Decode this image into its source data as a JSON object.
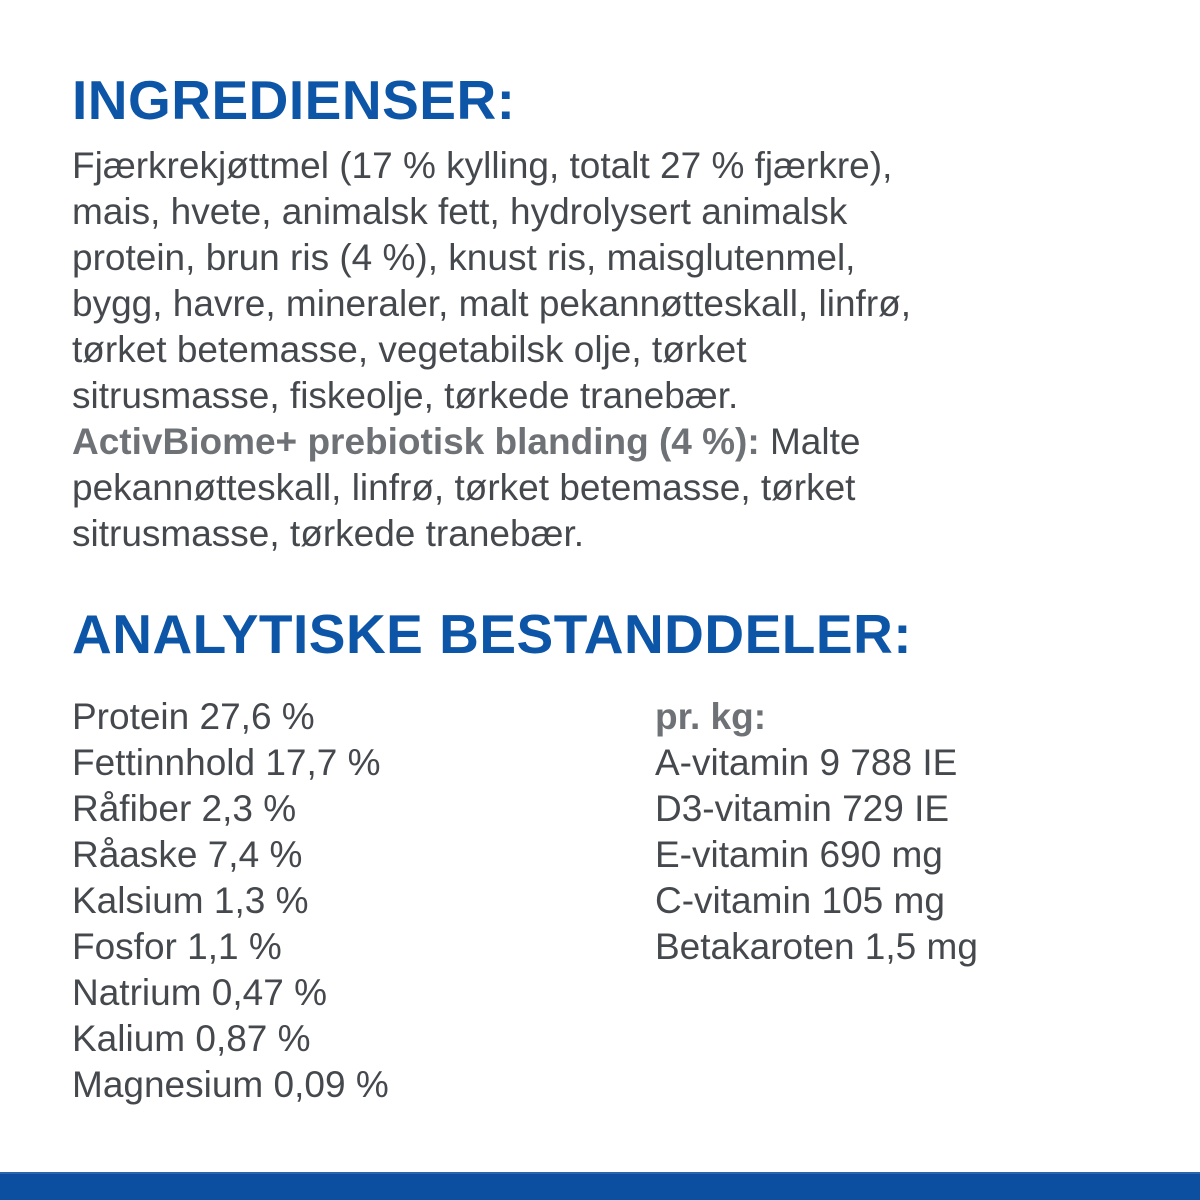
{
  "page": {
    "colors": {
      "heading_blue": "#0d55a6",
      "bottom_bar_blue": "#0c4fa1",
      "body_text": "#45494e",
      "bold_lead_gray": "#6e7175",
      "background": "#ffffff"
    }
  },
  "ingredients": {
    "heading": "INGREDIENSER:",
    "lines": [
      "Fjærkrekjøttmel (17 % kylling, totalt 27 % fjærkre),",
      "mais, hvete, animalsk fett, hydrolysert animalsk",
      "protein, brun ris (4 %), knust ris, maisglutenmel,",
      "bygg, havre, mineraler, malt pekannøtteskall, linfrø,",
      "tørket betemasse, vegetabilsk olje, tørket",
      "sitrusmasse, fiskeolje, tørkede tranebær."
    ],
    "activbiome_bold": "ActivBiome+ prebiotisk blanding (4 %):",
    "activbiome_rest": " Malte",
    "activbiome_lines": [
      "pekannøtteskall, linfrø, tørket betemasse, tørket",
      "sitrusmasse, tørkede tranebær."
    ]
  },
  "analysis": {
    "heading": "ANALYTISKE BESTANDDELER:",
    "left_column": [
      "Protein 27,6 %",
      "Fettinnhold 17,7 %",
      "Råfiber 2,3 %",
      "Råaske 7,4 %",
      "Kalsium 1,3 %",
      "Fosfor 1,1 %",
      "Natrium 0,47 %",
      "Kalium 0,87 %",
      "Magnesium 0,09 %"
    ],
    "right_column": {
      "header": "pr. kg:",
      "items": [
        "A-vitamin 9 788 IE",
        "D3-vitamin 729 IE",
        "E-vitamin 690 mg",
        "C-vitamin 105 mg",
        "Betakaroten 1,5 mg"
      ]
    }
  }
}
